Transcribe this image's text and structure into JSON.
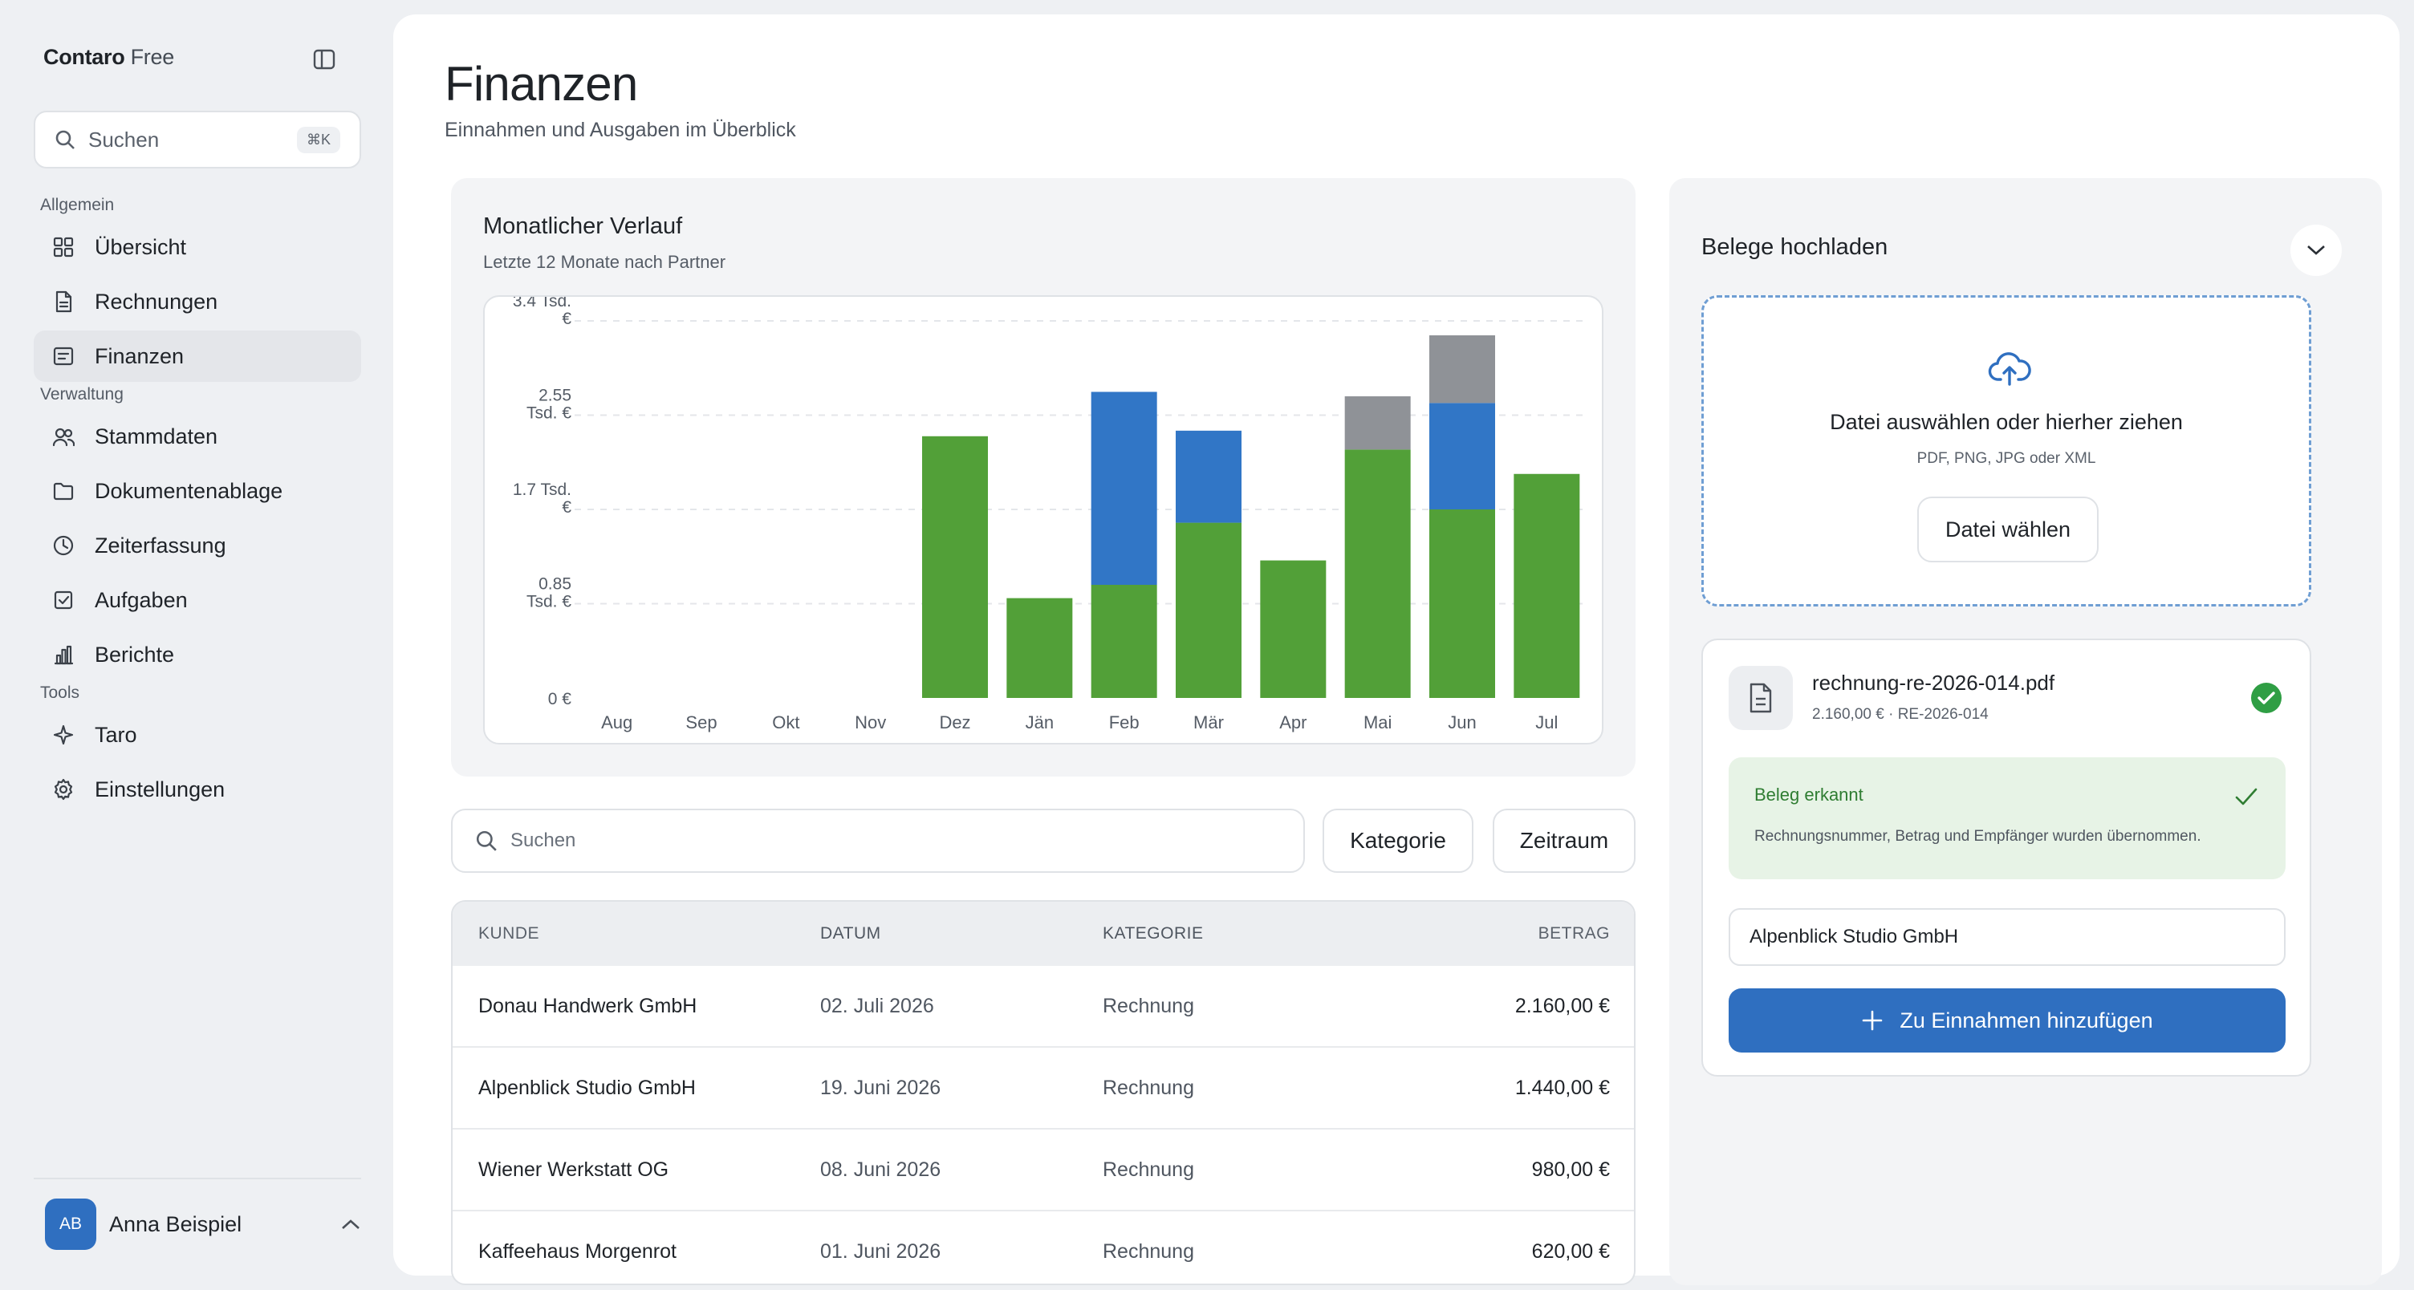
{
  "sidebar": {
    "brand": "Contaro",
    "plan": "Free",
    "search": {
      "label": "Suchen",
      "shortcut": "⌘K"
    },
    "sections": [
      {
        "label": "Allgemein",
        "items": [
          {
            "label": "Übersicht",
            "icon": "grid-icon"
          },
          {
            "label": "Rechnungen",
            "icon": "document-icon"
          },
          {
            "label": "Finanzen",
            "icon": "receipt-icon",
            "active": true
          }
        ]
      },
      {
        "label": "Verwaltung",
        "items": [
          {
            "label": "Stammdaten",
            "icon": "users-icon"
          },
          {
            "label": "Dokumentenablage",
            "icon": "folder-icon"
          },
          {
            "label": "Zeiterfassung",
            "icon": "clock-icon"
          },
          {
            "label": "Aufgaben",
            "icon": "checkbox-icon"
          },
          {
            "label": "Berichte",
            "icon": "bar-chart-icon"
          }
        ]
      },
      {
        "label": "Tools",
        "items": [
          {
            "label": "Taro",
            "icon": "sparkle-icon"
          },
          {
            "label": "Einstellungen",
            "icon": "gear-icon"
          }
        ]
      }
    ],
    "user": {
      "initials": "AB",
      "name": "Anna Beispiel"
    }
  },
  "page": {
    "title": "Finanzen",
    "subtitle": "Einnahmen und Ausgaben im Überblick"
  },
  "chart_card": {
    "title": "Monatlicher Verlauf",
    "subtitle": "Letzte 12 Monate nach Partner"
  },
  "chart_data": {
    "type": "bar",
    "stacked": true,
    "categories": [
      "Aug",
      "Sep",
      "Okt",
      "Nov",
      "Dez",
      "Jän",
      "Feb",
      "Mär",
      "Apr",
      "Mai",
      "Jun",
      "Jul"
    ],
    "series": [
      {
        "color": "#52a038",
        "values": [
          0,
          0,
          0,
          0,
          2360,
          900,
          1020,
          1580,
          1240,
          2240,
          1700,
          2020
        ]
      },
      {
        "color": "#3176c6",
        "values": [
          0,
          0,
          0,
          0,
          0,
          0,
          1740,
          830,
          0,
          0,
          960,
          0
        ]
      },
      {
        "color": "#8f9297",
        "values": [
          0,
          0,
          0,
          0,
          0,
          0,
          0,
          0,
          0,
          480,
          610,
          0
        ]
      }
    ],
    "yticks": [
      {
        "value": 0,
        "lines": [
          "0 €"
        ]
      },
      {
        "value": 850,
        "lines": [
          "0.85",
          "Tsd. €"
        ]
      },
      {
        "value": 1700,
        "lines": [
          "1.7 Tsd.",
          "€"
        ]
      },
      {
        "value": 2550,
        "lines": [
          "2.55",
          "Tsd. €"
        ]
      },
      {
        "value": 3400,
        "lines": [
          "3.4 Tsd.",
          "€"
        ]
      }
    ],
    "ylim": [
      0,
      3400
    ],
    "grid": true
  },
  "filters": {
    "search_placeholder": "Suchen",
    "category": "Kategorie",
    "period": "Zeitraum"
  },
  "table": {
    "headers": [
      "KUNDE",
      "DATUM",
      "KATEGORIE",
      "BETRAG"
    ],
    "rows": [
      {
        "kunde": "Donau Handwerk GmbH",
        "datum": "02. Juli 2026",
        "kategorie": "Rechnung",
        "betrag": "2.160,00 €"
      },
      {
        "kunde": "Alpenblick Studio GmbH",
        "datum": "19. Juni 2026",
        "kategorie": "Rechnung",
        "betrag": "1.440,00 €"
      },
      {
        "kunde": "Wiener Werkstatt OG",
        "datum": "08. Juni 2026",
        "kategorie": "Rechnung",
        "betrag": "980,00 €"
      },
      {
        "kunde": "Kaffeehaus Morgenrot",
        "datum": "01. Juni 2026",
        "kategorie": "Rechnung",
        "betrag": "620,00 €"
      }
    ]
  },
  "upload": {
    "title": "Belege hochladen",
    "drop_title": "Datei auswählen oder hierher ziehen",
    "drop_hint": "PDF, PNG, JPG oder XML",
    "choose_button": "Datei wählen",
    "file": {
      "name": "rechnung-re-2026-014.pdf",
      "meta": "2.160,00 € · RE-2026-014"
    },
    "recognized": {
      "title": "Beleg erkannt",
      "text": "Rechnungsnummer, Betrag und Empfänger wurden übernommen."
    },
    "recipient_value": "Alpenblick Studio GmbH",
    "add_button": "Zu Einnahmen hinzufügen"
  },
  "colors": {
    "accent": "#2f6fc0",
    "success": "#2f9e44",
    "income": "#52a038",
    "partner_blue": "#3176c6",
    "partner_gray": "#8f9297"
  }
}
